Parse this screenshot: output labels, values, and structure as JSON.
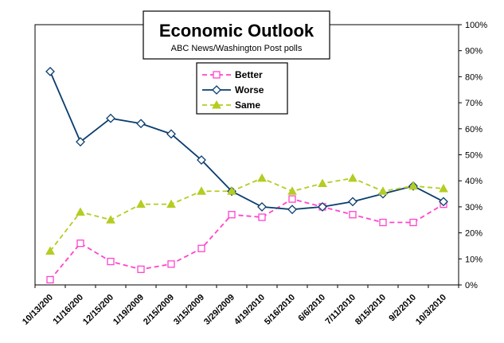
{
  "chart_data": {
    "type": "line",
    "title": "Economic Outlook",
    "subtitle": "ABC News/Washington Post polls",
    "categories": [
      "10/13/200",
      "11/16/200",
      "12/15/200",
      "1/19/2009",
      "2/15/2009",
      "3/15/2009",
      "3/29/2009",
      "4/19/2010",
      "5/16/2010",
      "6/6/2010",
      "7/11/2010",
      "8/15/2010",
      "9/2/2010",
      "10/3/2010"
    ],
    "series": [
      {
        "name": "Better",
        "values": [
          2,
          16,
          9,
          6,
          8,
          14,
          27,
          26,
          33,
          30,
          27,
          24,
          24,
          31
        ],
        "color": "#ff44cc",
        "marker": "square",
        "dash": "dashed"
      },
      {
        "name": "Worse",
        "values": [
          82,
          55,
          64,
          62,
          58,
          48,
          36,
          30,
          29,
          30,
          32,
          35,
          38,
          32
        ],
        "color": "#0a3d6e",
        "marker": "diamond",
        "dash": "solid"
      },
      {
        "name": "Same",
        "values": [
          13,
          28,
          25,
          31,
          31,
          36,
          36,
          41,
          36,
          39,
          41,
          36,
          38,
          37
        ],
        "color": "#b5cc22",
        "marker": "triangle",
        "dash": "dashed"
      }
    ],
    "y_axis": {
      "side": "right",
      "ylim": [
        0,
        100
      ],
      "ticks": [
        0,
        10,
        20,
        30,
        40,
        50,
        60,
        70,
        80,
        90,
        100
      ],
      "format": "percent"
    },
    "ytick_labels": [
      "0%",
      "10%",
      "20%",
      "30%",
      "40%",
      "50%",
      "60%",
      "70%",
      "80%",
      "90%",
      "100%"
    ],
    "grid": false,
    "legend_position": "top-center"
  }
}
